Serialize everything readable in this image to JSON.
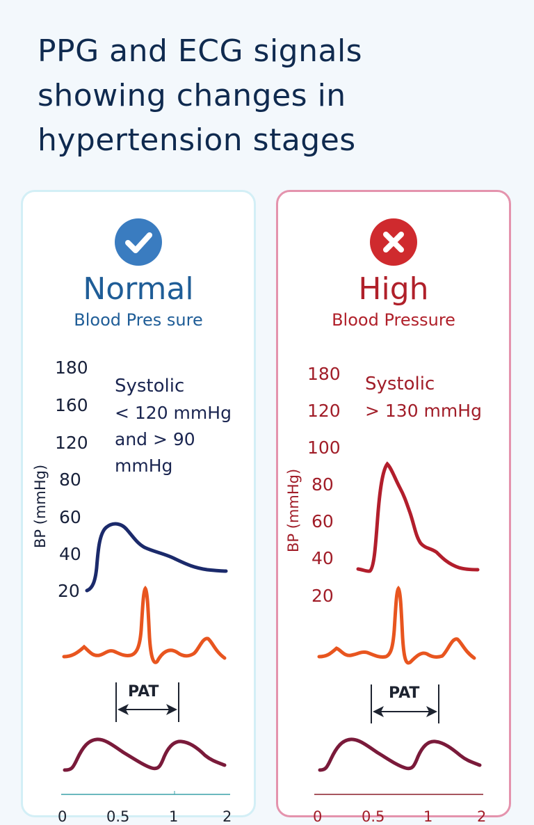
{
  "title": {
    "lines": [
      "PPG and ECG signals",
      "showing changes in",
      "hypertension stages"
    ]
  },
  "colors": {
    "background": "#f3f8fc",
    "title": "#0f2a4f",
    "normal_accent": "#1f5d97",
    "normal_icon": "#3a7cc0",
    "high_accent": "#b0202a",
    "high_icon": "#cf2a2e",
    "bp_normal_line": "#1b2a6b",
    "bp_high_line": "#b21e2c",
    "ecg_line": "#e8551f",
    "ppg_line": "#7a1a3a"
  },
  "panels": [
    {
      "id": "normal",
      "icon": "check-circle-icon",
      "stage": "Normal",
      "subtitle": "Blood Pres sure",
      "y_ticks": [
        "180",
        "160",
        "120",
        "80",
        "60",
        "40",
        "20"
      ],
      "y_label": "BP (mmHg)",
      "systolic_title": "Systolic",
      "systolic_lines": [
        "< 120 mmHg",
        "and > 90",
        "mmHg"
      ],
      "pat_label": "PAT",
      "x_ticks": [
        "0",
        "0.5",
        "1",
        "2"
      ]
    },
    {
      "id": "high",
      "icon": "x-circle-icon",
      "stage": "High",
      "subtitle": "Blood Pressure",
      "y_ticks": [
        "180",
        "120",
        "100",
        "80",
        "60",
        "40",
        "20"
      ],
      "y_label": "BP (mmHg)",
      "systolic_title": "Systolic",
      "systolic_lines": [
        "> 130 mmHg"
      ],
      "pat_label": "PAT",
      "x_ticks": [
        "0",
        "0.5",
        "1",
        "2"
      ]
    }
  ]
}
